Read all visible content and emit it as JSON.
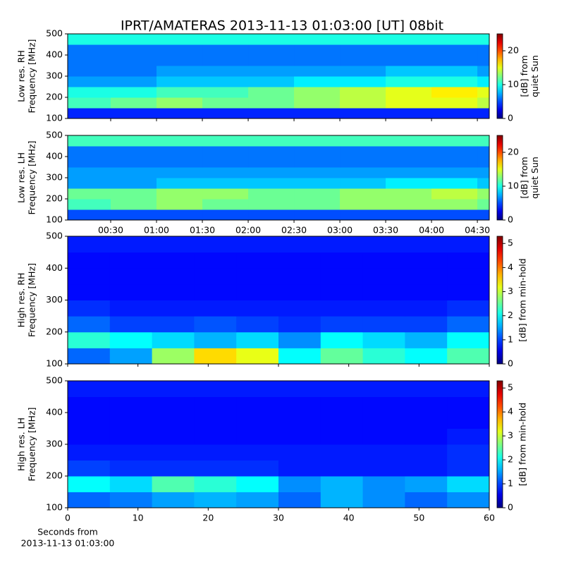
{
  "chart_data": [
    {
      "type": "heatmap",
      "title": "IPRT/AMATERAS 2013-11-13 01:03:00 [UT]   08bit",
      "ylabel": [
        "Low res. RH",
        "Frequency [MHz]"
      ],
      "xlim": [
        1.85,
        277.8
      ],
      "xticks": [
        {
          "value": 30,
          "label": "00:30"
        },
        {
          "value": 60,
          "label": "01:00"
        },
        {
          "value": 90,
          "label": "01:30"
        },
        {
          "value": 120,
          "label": "02:00"
        },
        {
          "value": 150,
          "label": "02:30"
        },
        {
          "value": 180,
          "label": "03:00"
        },
        {
          "value": 210,
          "label": "03:30"
        },
        {
          "value": 240,
          "label": "04:00"
        },
        {
          "value": 270,
          "label": "04:30"
        }
      ],
      "show_xtick_labels": false,
      "ylim": [
        100,
        500
      ],
      "yticks": [
        100,
        200,
        300,
        400,
        500
      ],
      "colorbar_label": [
        "[dB] from",
        "quiet Sun"
      ],
      "clim": [
        0,
        25
      ],
      "cticks": [
        0,
        10,
        20
      ],
      "x": [
        15,
        45,
        75,
        105,
        135,
        165,
        195,
        225,
        255,
        285
      ],
      "y": [
        125,
        175,
        225,
        275,
        325,
        375,
        425,
        475
      ],
      "z": [
        [
          4,
          4,
          4,
          4,
          4,
          4,
          4,
          4,
          4,
          4
        ],
        [
          11,
          12,
          13,
          12,
          12,
          13,
          14,
          15,
          15,
          14
        ],
        [
          10,
          10,
          11,
          11,
          12,
          13,
          14,
          15,
          16,
          15
        ],
        [
          7,
          7,
          8,
          8,
          8,
          9,
          9,
          10,
          10,
          9
        ],
        [
          6,
          6,
          7,
          7,
          7,
          7,
          7,
          8,
          8,
          7
        ],
        [
          6,
          6,
          6,
          6,
          6,
          6,
          6,
          6,
          6,
          6
        ],
        [
          6,
          6,
          6,
          6,
          6,
          6,
          6,
          6,
          6,
          6
        ],
        [
          10,
          10,
          10,
          10,
          10,
          10,
          10,
          10,
          10,
          10
        ]
      ]
    },
    {
      "type": "heatmap",
      "ylabel": [
        "Low res. LH",
        "Frequency [MHz]"
      ],
      "xlim": [
        1.85,
        277.8
      ],
      "xticks": [
        {
          "value": 30,
          "label": "00:30"
        },
        {
          "value": 60,
          "label": "01:00"
        },
        {
          "value": 90,
          "label": "01:30"
        },
        {
          "value": 120,
          "label": "02:00"
        },
        {
          "value": 150,
          "label": "02:30"
        },
        {
          "value": 180,
          "label": "03:00"
        },
        {
          "value": 210,
          "label": "03:30"
        },
        {
          "value": 240,
          "label": "04:00"
        },
        {
          "value": 270,
          "label": "04:30"
        }
      ],
      "show_xtick_labels": true,
      "ylim": [
        100,
        500
      ],
      "yticks": [
        100,
        200,
        300,
        400,
        500
      ],
      "colorbar_label": [
        "[dB] from",
        "quiet Sun"
      ],
      "clim": [
        0,
        25
      ],
      "cticks": [
        0,
        10,
        20
      ],
      "x": [
        15,
        45,
        75,
        105,
        135,
        165,
        195,
        225,
        255,
        285
      ],
      "y": [
        125,
        175,
        225,
        275,
        325,
        375,
        425,
        475
      ],
      "z": [
        [
          5,
          5,
          5,
          5,
          5,
          5,
          5,
          5,
          5,
          5
        ],
        [
          11,
          12,
          13,
          12,
          12,
          12,
          13,
          13,
          13,
          12
        ],
        [
          12,
          12,
          13,
          13,
          12,
          12,
          13,
          13,
          14,
          13
        ],
        [
          7,
          7,
          8,
          8,
          8,
          8,
          8,
          9,
          9,
          8
        ],
        [
          7,
          7,
          7,
          7,
          7,
          7,
          7,
          7,
          7,
          7
        ],
        [
          6,
          6,
          6,
          6,
          6,
          6,
          6,
          6,
          6,
          6
        ],
        [
          6,
          6,
          6,
          6,
          6,
          6,
          6,
          6,
          6,
          6
        ],
        [
          11,
          11,
          11,
          11,
          11,
          11,
          11,
          11,
          11,
          11
        ]
      ]
    },
    {
      "type": "heatmap",
      "ylabel": [
        "High res. RH",
        "Frequency [MHz]"
      ],
      "xlim": [
        0,
        60
      ],
      "xticks": [
        0,
        10,
        20,
        30,
        40,
        50,
        60
      ],
      "show_xtick_labels": false,
      "ylim": [
        100,
        500
      ],
      "yticks": [
        100,
        200,
        300,
        400,
        500
      ],
      "colorbar_label": [
        "[dB] from min-hold"
      ],
      "clim": [
        0,
        5.3
      ],
      "cticks": [
        0,
        1,
        2,
        3,
        4,
        5
      ],
      "x": [
        3,
        9,
        15,
        21,
        27,
        33,
        39,
        45,
        51,
        57
      ],
      "y": [
        125,
        175,
        225,
        275,
        325,
        375,
        425,
        475
      ],
      "z": [
        [
          1.2,
          1.5,
          2.8,
          3.5,
          3.2,
          2.0,
          2.5,
          2.2,
          2.0,
          2.4
        ],
        [
          2.2,
          2.0,
          1.8,
          1.6,
          1.8,
          1.4,
          2.0,
          1.8,
          1.6,
          2.0
        ],
        [
          1.2,
          1.0,
          1.0,
          1.1,
          1.0,
          0.9,
          1.0,
          1.0,
          1.0,
          1.2
        ],
        [
          0.9,
          0.8,
          0.8,
          0.8,
          0.8,
          0.8,
          0.8,
          0.8,
          0.8,
          0.9
        ],
        [
          0.7,
          0.7,
          0.7,
          0.7,
          0.7,
          0.7,
          0.7,
          0.7,
          0.7,
          0.7
        ],
        [
          0.7,
          0.7,
          0.7,
          0.7,
          0.7,
          0.7,
          0.7,
          0.7,
          0.7,
          0.7
        ],
        [
          0.7,
          0.7,
          0.7,
          0.7,
          0.7,
          0.7,
          0.7,
          0.7,
          0.7,
          0.7
        ],
        [
          0.8,
          0.8,
          0.8,
          0.8,
          0.8,
          0.8,
          0.8,
          0.8,
          0.8,
          0.8
        ]
      ]
    },
    {
      "type": "heatmap",
      "ylabel": [
        "High res. LH",
        "Frequency [MHz]"
      ],
      "xlim": [
        0,
        60
      ],
      "xticks": [
        0,
        10,
        20,
        30,
        40,
        50,
        60
      ],
      "show_xtick_labels": true,
      "xlabel": [
        "Seconds from",
        "2013-11-13 01:03:00"
      ],
      "ylim": [
        100,
        500
      ],
      "yticks": [
        100,
        200,
        300,
        400,
        500
      ],
      "colorbar_label": [
        "[dB] from min-hold"
      ],
      "clim": [
        0,
        5.3
      ],
      "cticks": [
        0,
        1,
        2,
        3,
        4,
        5
      ],
      "x": [
        3,
        9,
        15,
        21,
        27,
        33,
        39,
        45,
        51,
        57
      ],
      "y": [
        125,
        175,
        225,
        275,
        325,
        375,
        425,
        475
      ],
      "z": [
        [
          1.2,
          1.3,
          1.5,
          1.6,
          1.5,
          1.2,
          1.6,
          1.4,
          1.2,
          1.4
        ],
        [
          2.0,
          1.8,
          2.4,
          2.2,
          2.0,
          1.4,
          1.6,
          1.4,
          1.5,
          1.8
        ],
        [
          1.0,
          0.9,
          0.9,
          0.9,
          0.9,
          0.8,
          0.8,
          0.8,
          0.8,
          0.9
        ],
        [
          0.8,
          0.8,
          0.8,
          0.8,
          0.8,
          0.8,
          0.8,
          0.8,
          0.8,
          0.9
        ],
        [
          0.7,
          0.7,
          0.7,
          0.7,
          0.7,
          0.7,
          0.7,
          0.7,
          0.7,
          0.8
        ],
        [
          0.7,
          0.7,
          0.7,
          0.7,
          0.7,
          0.7,
          0.7,
          0.7,
          0.7,
          0.7
        ],
        [
          0.7,
          0.7,
          0.7,
          0.7,
          0.7,
          0.7,
          0.7,
          0.7,
          0.7,
          0.7
        ],
        [
          0.8,
          0.8,
          0.8,
          0.8,
          0.8,
          0.8,
          0.8,
          0.8,
          0.8,
          0.8
        ]
      ]
    }
  ]
}
